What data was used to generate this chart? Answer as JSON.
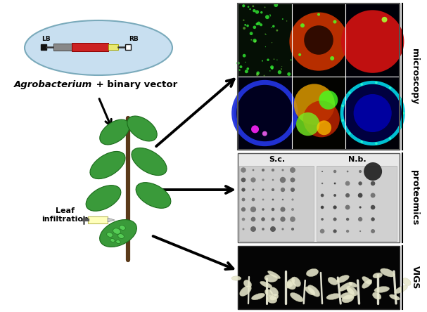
{
  "bg_color": "#ffffff",
  "ellipse_fill": "#c8dff0",
  "ellipse_edge": "#7aaabb",
  "title_italic": "Agrobacterium",
  "title_rest": " + binary vector",
  "leaf_infiltration": "Leaf\ninfiltration",
  "label_microscopy": "microscopy",
  "label_proteomics": "proteomics",
  "label_VIGS": "VIGS",
  "sc_label": "S.c.",
  "nb_label": "N.b.",
  "fig_width": 6.07,
  "fig_height": 4.44,
  "dpi": 100,
  "leaf_color": "#3a9a3a",
  "leaf_edge": "#1a6b1a",
  "stem_color": "#5a3a1a"
}
